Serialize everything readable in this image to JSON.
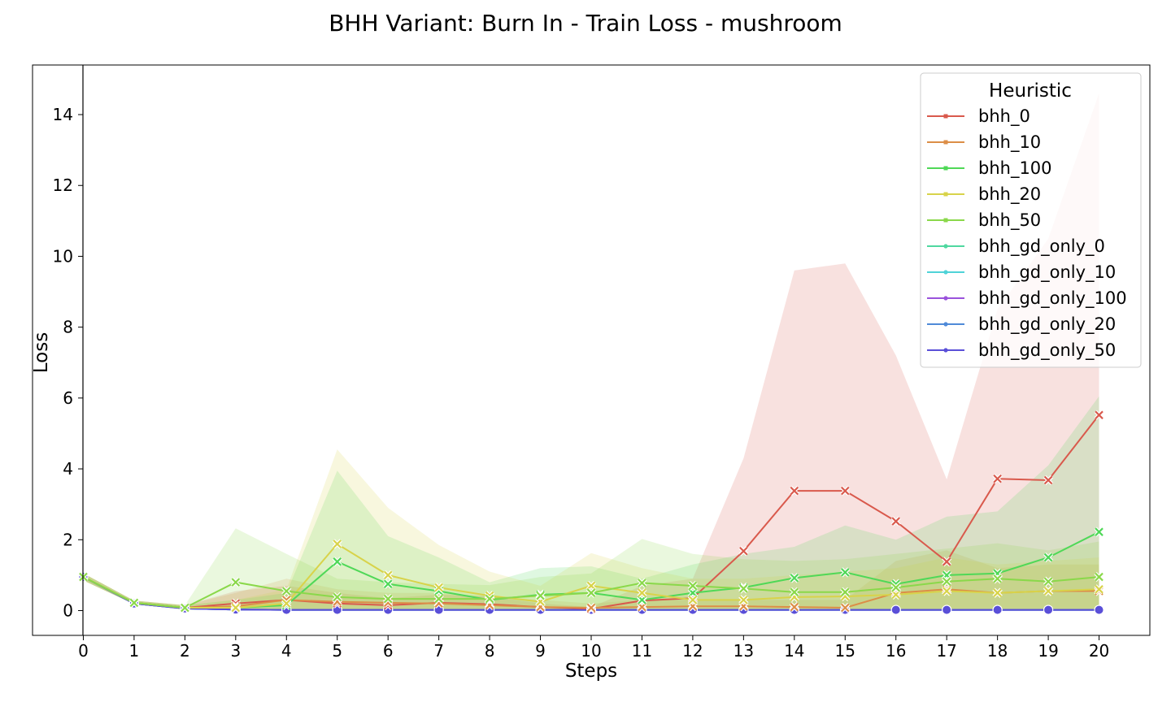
{
  "chart_data": {
    "type": "line",
    "title": "BHH Variant: Burn In - Train Loss - mushroom",
    "xlabel": "Steps",
    "ylabel": "Loss",
    "x": [
      0,
      1,
      2,
      3,
      4,
      5,
      6,
      7,
      8,
      9,
      10,
      11,
      12,
      13,
      14,
      15,
      16,
      17,
      18,
      19,
      20
    ],
    "xlim": [
      -1,
      21
    ],
    "ylim": [
      -0.7,
      15.4
    ],
    "yticks": [
      0,
      2,
      4,
      6,
      8,
      10,
      12,
      14
    ],
    "grid": false,
    "legend": {
      "title": "Heuristic",
      "position": "top-right"
    },
    "series": [
      {
        "name": "bhh_0",
        "color": "#d9594c",
        "marker": "x",
        "values": [
          0.95,
          0.22,
          0.08,
          0.2,
          0.3,
          0.2,
          0.15,
          0.22,
          0.18,
          0.1,
          0.05,
          0.28,
          0.35,
          1.68,
          3.38,
          3.38,
          2.52,
          1.38,
          3.72,
          3.68,
          5.52
        ],
        "lower": [
          0.85,
          0.18,
          0.03,
          0.02,
          0.02,
          0.02,
          0.02,
          0.02,
          0.02,
          0.02,
          0.02,
          0.02,
          0.02,
          0.02,
          0.02,
          0.02,
          0.02,
          0.02,
          0.02,
          0.02,
          0.05
        ],
        "upper": [
          1.05,
          0.28,
          0.15,
          0.55,
          0.7,
          0.5,
          0.35,
          0.45,
          0.4,
          0.2,
          0.1,
          0.7,
          0.9,
          4.3,
          9.6,
          9.8,
          7.2,
          3.7,
          8.5,
          10.5,
          14.6
        ]
      },
      {
        "name": "bhh_10",
        "color": "#dc8e47",
        "marker": "x",
        "values": [
          0.95,
          0.22,
          0.08,
          0.12,
          0.3,
          0.25,
          0.22,
          0.2,
          0.15,
          0.1,
          0.08,
          0.1,
          0.12,
          0.12,
          0.1,
          0.08,
          0.5,
          0.6,
          0.5,
          0.55,
          0.55
        ],
        "lower": [
          0.85,
          0.18,
          0.03,
          0.02,
          0.02,
          0.02,
          0.02,
          0.02,
          0.02,
          0.02,
          0.02,
          0.02,
          0.02,
          0.02,
          0.02,
          0.02,
          0.02,
          0.02,
          0.02,
          0.02,
          0.02
        ],
        "upper": [
          1.05,
          0.28,
          0.15,
          0.5,
          0.9,
          0.6,
          0.5,
          0.5,
          0.4,
          0.3,
          0.2,
          0.3,
          0.3,
          0.3,
          0.3,
          0.3,
          1.4,
          1.7,
          1.2,
          1.3,
          1.3
        ]
      },
      {
        "name": "bhh_100",
        "color": "#4fd857",
        "marker": "x",
        "values": [
          0.95,
          0.22,
          0.08,
          0.08,
          0.15,
          1.38,
          0.75,
          0.55,
          0.3,
          0.45,
          0.5,
          0.3,
          0.5,
          0.65,
          0.92,
          1.08,
          0.75,
          1.0,
          1.05,
          1.5,
          2.22
        ],
        "lower": [
          0.85,
          0.18,
          0.03,
          0.02,
          0.02,
          0.02,
          0.02,
          0.02,
          0.02,
          0.02,
          0.02,
          0.02,
          0.02,
          0.02,
          0.02,
          0.02,
          0.02,
          0.02,
          0.02,
          0.02,
          0.02
        ],
        "upper": [
          1.05,
          0.28,
          0.15,
          0.3,
          0.5,
          3.95,
          2.1,
          1.5,
          0.8,
          1.2,
          1.25,
          0.9,
          1.3,
          1.6,
          1.8,
          2.4,
          2.0,
          2.65,
          2.8,
          4.1,
          6.05
        ]
      },
      {
        "name": "bhh_20",
        "color": "#d8d34a",
        "marker": "x",
        "values": [
          0.95,
          0.22,
          0.08,
          0.08,
          0.2,
          1.88,
          1.0,
          0.65,
          0.42,
          0.25,
          0.7,
          0.5,
          0.3,
          0.3,
          0.38,
          0.4,
          0.45,
          0.55,
          0.5,
          0.55,
          0.6
        ],
        "lower": [
          0.85,
          0.18,
          0.03,
          0.02,
          0.02,
          0.02,
          0.02,
          0.02,
          0.02,
          0.02,
          0.02,
          0.02,
          0.02,
          0.02,
          0.02,
          0.02,
          0.02,
          0.02,
          0.02,
          0.02,
          0.02
        ],
        "upper": [
          1.05,
          0.28,
          0.15,
          0.3,
          0.6,
          4.55,
          2.9,
          1.85,
          1.1,
          0.7,
          1.62,
          1.2,
          0.9,
          0.9,
          1.0,
          1.1,
          1.2,
          1.5,
          1.3,
          1.4,
          1.5
        ]
      },
      {
        "name": "bhh_50",
        "color": "#8ad84a",
        "marker": "x",
        "values": [
          0.95,
          0.22,
          0.08,
          0.8,
          0.55,
          0.38,
          0.33,
          0.33,
          0.33,
          0.42,
          0.5,
          0.78,
          0.7,
          0.62,
          0.52,
          0.52,
          0.65,
          0.82,
          0.9,
          0.82,
          0.95
        ],
        "lower": [
          0.85,
          0.18,
          0.03,
          0.02,
          0.02,
          0.02,
          0.02,
          0.02,
          0.02,
          0.02,
          0.02,
          0.02,
          0.02,
          0.02,
          0.02,
          0.02,
          0.02,
          0.02,
          0.02,
          0.02,
          0.02
        ],
        "upper": [
          1.05,
          0.28,
          0.15,
          2.32,
          1.6,
          0.9,
          0.8,
          0.75,
          0.72,
          0.95,
          1.05,
          2.02,
          1.6,
          1.45,
          1.4,
          1.45,
          1.6,
          1.75,
          1.9,
          1.7,
          1.95
        ]
      },
      {
        "name": "bhh_gd_only_0",
        "color": "#4fd8a0",
        "marker": "o",
        "values": [
          0.95,
          0.2,
          0.06,
          0.03,
          0.02,
          0.02,
          0.02,
          0.02,
          0.02,
          0.02,
          0.02,
          0.02,
          0.02,
          0.02,
          0.02,
          0.02,
          0.02,
          0.02,
          0.02,
          0.02,
          0.02
        ]
      },
      {
        "name": "bhh_gd_only_10",
        "color": "#4fd3d8",
        "marker": "o",
        "values": [
          0.95,
          0.2,
          0.06,
          0.03,
          0.02,
          0.02,
          0.02,
          0.02,
          0.02,
          0.02,
          0.02,
          0.02,
          0.02,
          0.02,
          0.02,
          0.02,
          0.02,
          0.02,
          0.02,
          0.02,
          0.02
        ]
      },
      {
        "name": "bhh_gd_only_100",
        "color": "#9a52dc",
        "marker": "o",
        "values": [
          0.95,
          0.2,
          0.06,
          0.03,
          0.02,
          0.02,
          0.02,
          0.02,
          0.02,
          0.02,
          0.02,
          0.02,
          0.02,
          0.02,
          0.02,
          0.02,
          0.02,
          0.02,
          0.02,
          0.02,
          0.02
        ]
      },
      {
        "name": "bhh_gd_only_20",
        "color": "#4f8ad8",
        "marker": "o",
        "values": [
          0.95,
          0.2,
          0.06,
          0.03,
          0.02,
          0.02,
          0.02,
          0.02,
          0.02,
          0.02,
          0.02,
          0.02,
          0.02,
          0.02,
          0.02,
          0.02,
          0.02,
          0.02,
          0.02,
          0.02,
          0.02
        ]
      },
      {
        "name": "bhh_gd_only_50",
        "color": "#5a4fd8",
        "marker": "o",
        "values": [
          0.95,
          0.2,
          0.06,
          0.03,
          0.02,
          0.02,
          0.02,
          0.02,
          0.02,
          0.02,
          0.02,
          0.02,
          0.02,
          0.02,
          0.02,
          0.02,
          0.02,
          0.02,
          0.02,
          0.02,
          0.02
        ]
      }
    ]
  }
}
